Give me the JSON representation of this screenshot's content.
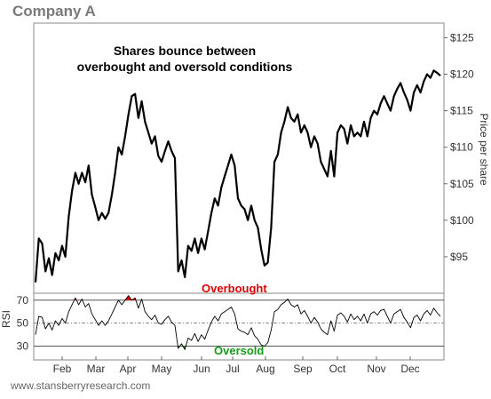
{
  "chart_data": {
    "type": "line",
    "title": "Company A",
    "source": "www.stansberryresearch.com",
    "months": [
      "Feb",
      "Mar",
      "Apr",
      "May",
      "Jun",
      "Jul",
      "Aug",
      "Sep",
      "Oct",
      "Nov",
      "Dec"
    ],
    "price_panel": {
      "annotation": "Shares bounce between overbought and oversold conditions",
      "ylabel": "Price per share",
      "ticks": [
        "$95",
        "$100",
        "$105",
        "$110",
        "$115",
        "$120",
        "$125"
      ],
      "ylim": [
        90,
        127
      ],
      "series": [
        {
          "values": [
            91.5,
            97.5,
            96.8,
            93.0,
            94.8,
            92.5,
            95.5,
            94.5,
            96.5,
            95.0,
            100.5,
            104.0,
            106.5,
            105.0,
            106.5,
            105.2,
            107.5,
            103.5,
            101.8,
            100.0,
            101.0,
            100.2,
            101.0,
            103.5,
            106.5,
            110.0,
            109.0,
            111.5,
            114.5,
            117.0,
            117.3,
            114.0,
            116.3,
            113.5,
            112.0,
            110.5,
            111.5,
            108.8,
            108.0,
            109.5,
            110.8,
            109.5,
            108.5,
            93.0,
            94.5,
            92.2,
            96.5,
            95.8,
            97.5,
            95.5,
            97.5,
            96.0,
            98.5,
            101.0,
            103.0,
            102.0,
            104.5,
            106.0,
            107.5,
            109.0,
            107.5,
            103.0,
            102.0,
            101.5,
            100.0,
            102.0,
            100.0,
            99.0,
            96.0,
            93.8,
            94.2,
            99.0,
            108.0,
            109.0,
            112.0,
            113.5,
            115.5,
            114.0,
            113.5,
            114.5,
            112.0,
            113.0,
            112.0,
            110.0,
            111.5,
            110.5,
            108.0,
            107.0,
            106.0,
            109.5,
            106.0,
            112.0,
            113.0,
            112.5,
            110.5,
            113.0,
            111.5,
            112.0,
            111.5,
            113.5,
            111.5,
            114.0,
            115.0,
            114.5,
            116.0,
            117.0,
            116.0,
            115.0,
            117.0,
            118.0,
            118.8,
            117.5,
            116.5,
            115.0,
            117.5,
            118.5,
            117.5,
            119.0,
            120.0,
            119.5,
            120.5,
            120.2,
            119.8
          ]
        }
      ]
    },
    "rsi_panel": {
      "ylabel": "RSI",
      "ticks": [
        "30",
        "50",
        "70"
      ],
      "ylim": [
        18,
        76
      ],
      "levels": {
        "overbought": 70,
        "middle": 50,
        "oversold": 30
      },
      "overbought_label": "Overbought",
      "oversold_label": "Oversold",
      "overbought_color": "#e00000",
      "oversold_color": "#1a9a1a",
      "series": [
        {
          "values": [
            40,
            56,
            55,
            45,
            50,
            44,
            52,
            48,
            54,
            50,
            60,
            66,
            72,
            66,
            71,
            64,
            67,
            58,
            53,
            48,
            52,
            48,
            52,
            58,
            64,
            70,
            66,
            70,
            74,
            70,
            72,
            63,
            71,
            60,
            56,
            53,
            57,
            50,
            49,
            53,
            56,
            51,
            48,
            28,
            32,
            27,
            37,
            35,
            41,
            34,
            40,
            36,
            44,
            51,
            56,
            52,
            58,
            60,
            62,
            64,
            58,
            45,
            43,
            42,
            40,
            46,
            39,
            36,
            31,
            30,
            33,
            44,
            60,
            62,
            66,
            68,
            71,
            66,
            64,
            66,
            58,
            61,
            56,
            50,
            55,
            51,
            45,
            42,
            40,
            52,
            43,
            57,
            59,
            56,
            51,
            58,
            53,
            56,
            52,
            58,
            50,
            58,
            60,
            57,
            61,
            62,
            56,
            50,
            58,
            60,
            62,
            55,
            51,
            46,
            55,
            57,
            52,
            58,
            61,
            57,
            63,
            59,
            56
          ]
        }
      ]
    }
  }
}
